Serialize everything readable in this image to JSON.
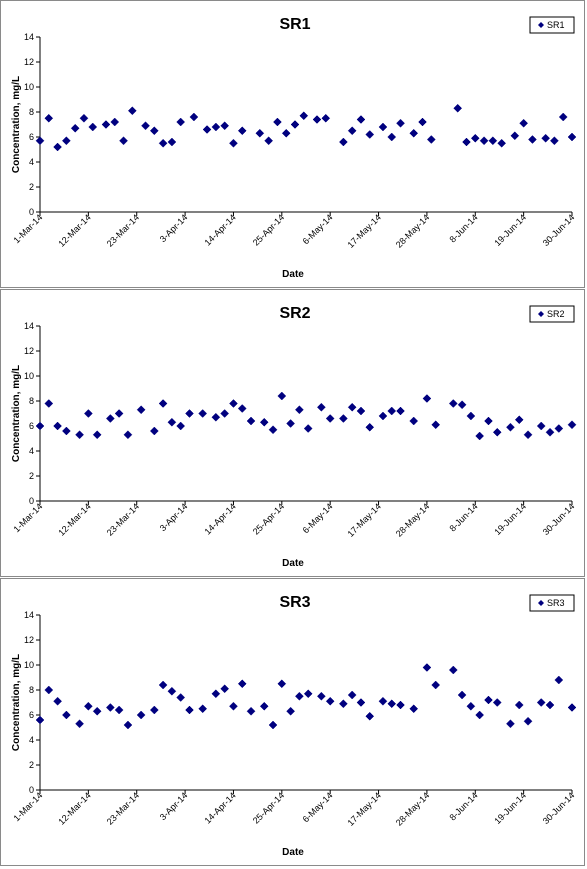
{
  "chart_data": [
    {
      "type": "scatter",
      "title": "SR1",
      "xlabel": "Date",
      "ylabel": "Concentration, mg/L",
      "ylim": [
        0,
        14
      ],
      "yticks": [
        "0",
        "2",
        "4",
        "6",
        "8",
        "10",
        "12",
        "14"
      ],
      "xlim": [
        "2014-03-01",
        "2014-06-30"
      ],
      "xtick_labels": [
        "1-Mar-14",
        "12-Mar-14",
        "23-Mar-14",
        "3-Apr-14",
        "14-Apr-14",
        "25-Apr-14",
        "6-May-14",
        "17-May-14",
        "28-May-14",
        "8-Jun-14",
        "19-Jun-14",
        "30-Jun-14"
      ],
      "grid": false,
      "legend": "top-right",
      "marker_color": "#00007f",
      "series": [
        {
          "name": "SR1",
          "points": [
            [
              "2014-03-01",
              5.7
            ],
            [
              "2014-03-03",
              7.5
            ],
            [
              "2014-03-05",
              5.2
            ],
            [
              "2014-03-07",
              5.7
            ],
            [
              "2014-03-09",
              6.7
            ],
            [
              "2014-03-11",
              7.5
            ],
            [
              "2014-03-13",
              6.8
            ],
            [
              "2014-03-16",
              7.0
            ],
            [
              "2014-03-18",
              7.2
            ],
            [
              "2014-03-20",
              5.7
            ],
            [
              "2014-03-22",
              8.1
            ],
            [
              "2014-03-25",
              6.9
            ],
            [
              "2014-03-27",
              6.5
            ],
            [
              "2014-03-29",
              5.5
            ],
            [
              "2014-03-31",
              5.6
            ],
            [
              "2014-04-02",
              7.2
            ],
            [
              "2014-04-05",
              7.6
            ],
            [
              "2014-04-08",
              6.6
            ],
            [
              "2014-04-10",
              6.8
            ],
            [
              "2014-04-12",
              6.9
            ],
            [
              "2014-04-14",
              5.5
            ],
            [
              "2014-04-16",
              6.5
            ],
            [
              "2014-04-20",
              6.3
            ],
            [
              "2014-04-22",
              5.7
            ],
            [
              "2014-04-24",
              7.2
            ],
            [
              "2014-04-26",
              6.3
            ],
            [
              "2014-04-28",
              7.0
            ],
            [
              "2014-04-30",
              7.7
            ],
            [
              "2014-05-03",
              7.4
            ],
            [
              "2014-05-05",
              7.5
            ],
            [
              "2014-05-09",
              5.6
            ],
            [
              "2014-05-11",
              6.5
            ],
            [
              "2014-05-13",
              7.4
            ],
            [
              "2014-05-15",
              6.2
            ],
            [
              "2014-05-18",
              6.8
            ],
            [
              "2014-05-20",
              6.0
            ],
            [
              "2014-05-22",
              7.1
            ],
            [
              "2014-05-25",
              6.3
            ],
            [
              "2014-05-27",
              7.2
            ],
            [
              "2014-05-29",
              5.8
            ],
            [
              "2014-06-04",
              8.3
            ],
            [
              "2014-06-06",
              5.6
            ],
            [
              "2014-06-08",
              5.9
            ],
            [
              "2014-06-10",
              5.7
            ],
            [
              "2014-06-12",
              5.7
            ],
            [
              "2014-06-14",
              5.5
            ],
            [
              "2014-06-17",
              6.1
            ],
            [
              "2014-06-19",
              7.1
            ],
            [
              "2014-06-21",
              5.8
            ],
            [
              "2014-06-24",
              5.9
            ],
            [
              "2014-06-26",
              5.7
            ],
            [
              "2014-06-28",
              7.6
            ],
            [
              "2014-06-30",
              6.0
            ]
          ]
        }
      ]
    },
    {
      "type": "scatter",
      "title": "SR2",
      "xlabel": "Date",
      "ylabel": "Concentration, mg/L",
      "ylim": [
        0,
        14
      ],
      "yticks": [
        "0",
        "2",
        "4",
        "6",
        "8",
        "10",
        "12",
        "14"
      ],
      "xlim": [
        "2014-03-01",
        "2014-06-30"
      ],
      "xtick_labels": [
        "1-Mar-14",
        "12-Mar-14",
        "23-Mar-14",
        "3-Apr-14",
        "14-Apr-14",
        "25-Apr-14",
        "6-May-14",
        "17-May-14",
        "28-May-14",
        "8-Jun-14",
        "19-Jun-14",
        "30-Jun-14"
      ],
      "grid": false,
      "legend": "top-right",
      "marker_color": "#00007f",
      "series": [
        {
          "name": "SR2",
          "points": [
            [
              "2014-03-01",
              6.0
            ],
            [
              "2014-03-03",
              7.8
            ],
            [
              "2014-03-05",
              6.0
            ],
            [
              "2014-03-07",
              5.6
            ],
            [
              "2014-03-10",
              5.3
            ],
            [
              "2014-03-12",
              7.0
            ],
            [
              "2014-03-14",
              5.3
            ],
            [
              "2014-03-17",
              6.6
            ],
            [
              "2014-03-19",
              7.0
            ],
            [
              "2014-03-21",
              5.3
            ],
            [
              "2014-03-24",
              7.3
            ],
            [
              "2014-03-27",
              5.6
            ],
            [
              "2014-03-29",
              7.8
            ],
            [
              "2014-03-31",
              6.3
            ],
            [
              "2014-04-02",
              6.0
            ],
            [
              "2014-04-04",
              7.0
            ],
            [
              "2014-04-07",
              7.0
            ],
            [
              "2014-04-10",
              6.7
            ],
            [
              "2014-04-12",
              7.0
            ],
            [
              "2014-04-14",
              7.8
            ],
            [
              "2014-04-16",
              7.4
            ],
            [
              "2014-04-18",
              6.4
            ],
            [
              "2014-04-21",
              6.3
            ],
            [
              "2014-04-23",
              5.7
            ],
            [
              "2014-04-25",
              8.4
            ],
            [
              "2014-04-27",
              6.2
            ],
            [
              "2014-04-29",
              7.3
            ],
            [
              "2014-05-01",
              5.8
            ],
            [
              "2014-05-04",
              7.5
            ],
            [
              "2014-05-06",
              6.6
            ],
            [
              "2014-05-09",
              6.6
            ],
            [
              "2014-05-11",
              7.5
            ],
            [
              "2014-05-13",
              7.2
            ],
            [
              "2014-05-15",
              5.9
            ],
            [
              "2014-05-18",
              6.8
            ],
            [
              "2014-05-20",
              7.2
            ],
            [
              "2014-05-22",
              7.2
            ],
            [
              "2014-05-25",
              6.4
            ],
            [
              "2014-05-28",
              8.2
            ],
            [
              "2014-05-30",
              6.1
            ],
            [
              "2014-06-03",
              7.8
            ],
            [
              "2014-06-05",
              7.7
            ],
            [
              "2014-06-07",
              6.8
            ],
            [
              "2014-06-09",
              5.2
            ],
            [
              "2014-06-11",
              6.4
            ],
            [
              "2014-06-13",
              5.5
            ],
            [
              "2014-06-16",
              5.9
            ],
            [
              "2014-06-18",
              6.5
            ],
            [
              "2014-06-20",
              5.3
            ],
            [
              "2014-06-23",
              6.0
            ],
            [
              "2014-06-25",
              5.5
            ],
            [
              "2014-06-27",
              5.8
            ],
            [
              "2014-06-30",
              6.1
            ]
          ]
        }
      ]
    },
    {
      "type": "scatter",
      "title": "SR3",
      "xlabel": "Date",
      "ylabel": "Concentration, mg/L",
      "ylim": [
        0,
        14
      ],
      "yticks": [
        "0",
        "2",
        "4",
        "6",
        "8",
        "10",
        "12",
        "14"
      ],
      "xlim": [
        "2014-03-01",
        "2014-06-30"
      ],
      "xtick_labels": [
        "1-Mar-14",
        "12-Mar-14",
        "23-Mar-14",
        "3-Apr-14",
        "14-Apr-14",
        "25-Apr-14",
        "6-May-14",
        "17-May-14",
        "28-May-14",
        "8-Jun-14",
        "19-Jun-14",
        "30-Jun-14"
      ],
      "grid": false,
      "legend": "top-right",
      "marker_color": "#00007f",
      "series": [
        {
          "name": "SR3",
          "points": [
            [
              "2014-03-01",
              5.6
            ],
            [
              "2014-03-03",
              8.0
            ],
            [
              "2014-03-05",
              7.1
            ],
            [
              "2014-03-07",
              6.0
            ],
            [
              "2014-03-10",
              5.3
            ],
            [
              "2014-03-12",
              6.7
            ],
            [
              "2014-03-14",
              6.3
            ],
            [
              "2014-03-17",
              6.6
            ],
            [
              "2014-03-19",
              6.4
            ],
            [
              "2014-03-21",
              5.2
            ],
            [
              "2014-03-24",
              6.0
            ],
            [
              "2014-03-27",
              6.4
            ],
            [
              "2014-03-29",
              8.4
            ],
            [
              "2014-03-31",
              7.9
            ],
            [
              "2014-04-02",
              7.4
            ],
            [
              "2014-04-04",
              6.4
            ],
            [
              "2014-04-07",
              6.5
            ],
            [
              "2014-04-10",
              7.7
            ],
            [
              "2014-04-12",
              8.1
            ],
            [
              "2014-04-14",
              6.7
            ],
            [
              "2014-04-16",
              8.5
            ],
            [
              "2014-04-18",
              6.3
            ],
            [
              "2014-04-21",
              6.7
            ],
            [
              "2014-04-23",
              5.2
            ],
            [
              "2014-04-25",
              8.5
            ],
            [
              "2014-04-27",
              6.3
            ],
            [
              "2014-04-29",
              7.5
            ],
            [
              "2014-05-01",
              7.7
            ],
            [
              "2014-05-04",
              7.5
            ],
            [
              "2014-05-06",
              7.1
            ],
            [
              "2014-05-09",
              6.9
            ],
            [
              "2014-05-11",
              7.6
            ],
            [
              "2014-05-13",
              7.0
            ],
            [
              "2014-05-15",
              5.9
            ],
            [
              "2014-05-18",
              7.1
            ],
            [
              "2014-05-20",
              6.9
            ],
            [
              "2014-05-22",
              6.8
            ],
            [
              "2014-05-25",
              6.5
            ],
            [
              "2014-05-28",
              9.8
            ],
            [
              "2014-05-30",
              8.4
            ],
            [
              "2014-06-03",
              9.6
            ],
            [
              "2014-06-05",
              7.6
            ],
            [
              "2014-06-07",
              6.7
            ],
            [
              "2014-06-09",
              6.0
            ],
            [
              "2014-06-11",
              7.2
            ],
            [
              "2014-06-13",
              7.0
            ],
            [
              "2014-06-16",
              5.3
            ],
            [
              "2014-06-18",
              6.8
            ],
            [
              "2014-06-20",
              5.5
            ],
            [
              "2014-06-23",
              7.0
            ],
            [
              "2014-06-25",
              6.8
            ],
            [
              "2014-06-27",
              8.8
            ],
            [
              "2014-06-30",
              6.6
            ]
          ]
        }
      ]
    }
  ]
}
